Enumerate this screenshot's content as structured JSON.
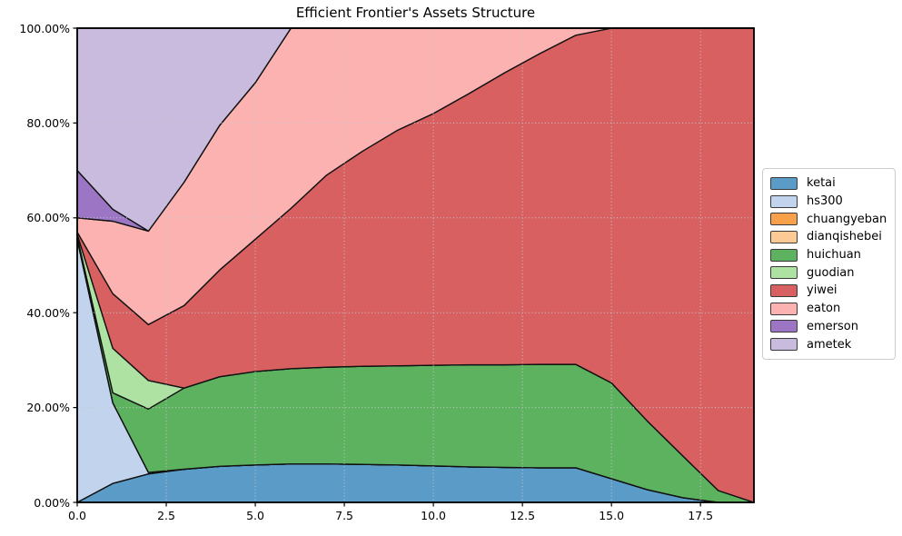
{
  "title": "Efficient Frontier's Assets Structure",
  "axes": {
    "y_tick_values": [
      0,
      20,
      40,
      60,
      80,
      100
    ],
    "y_tick_labels": [
      "0.00%",
      "20.00%",
      "40.00%",
      "60.00%",
      "80.00%",
      "100.00%"
    ],
    "x_tick_values": [
      0,
      2.5,
      5,
      7.5,
      10,
      12.5,
      15,
      17.5
    ],
    "x_tick_labels": [
      "0.0",
      "2.5",
      "5.0",
      "7.5",
      "10.0",
      "12.5",
      "15.0",
      "17.5"
    ],
    "grid_style": "dotted",
    "grid_color": "#c3c8cb",
    "frame_color": "#000000"
  },
  "chart_data": {
    "type": "area",
    "stacked": true,
    "title": "Efficient Frontier's Assets Structure",
    "xlabel": "",
    "ylabel": "",
    "xlim": [
      0,
      19
    ],
    "ylim": [
      0,
      100
    ],
    "y_unit": "percent",
    "grid": true,
    "legend_position": "center right outside",
    "edge_color": "#111111",
    "x": [
      0,
      1,
      2,
      3,
      4,
      5,
      6,
      7,
      8,
      9,
      10,
      11,
      12,
      13,
      14,
      15,
      16,
      17,
      18,
      19
    ],
    "series": [
      {
        "name": "ketai",
        "color": "#5b9bc8",
        "values": [
          0,
          4,
          6,
          7,
          7.6,
          7.9,
          8.1,
          8.1,
          8,
          7.9,
          7.7,
          7.5,
          7.4,
          7.3,
          7.3,
          5,
          2.7,
          1,
          0,
          0
        ]
      },
      {
        "name": "hs300",
        "color": "#c2d4ed",
        "values": [
          55.5,
          17,
          0.3,
          0,
          0,
          0,
          0,
          0,
          0,
          0,
          0,
          0,
          0,
          0,
          0,
          0,
          0,
          0,
          0,
          0
        ]
      },
      {
        "name": "chuangyeban",
        "color": "#f9a04a",
        "values": [
          0,
          0,
          0,
          0,
          0,
          0,
          0,
          0,
          0,
          0,
          0,
          0,
          0,
          0,
          0,
          0,
          0,
          0,
          0,
          0
        ]
      },
      {
        "name": "dianqishebei",
        "color": "#fdc995",
        "values": [
          0,
          0,
          0,
          0,
          0,
          0,
          0,
          0,
          0,
          0,
          0,
          0,
          0,
          0,
          0,
          0,
          0,
          0,
          0,
          0
        ]
      },
      {
        "name": "huichuan",
        "color": "#5db25f",
        "values": [
          0.5,
          2.1,
          13.4,
          17.1,
          18.9,
          19.7,
          20.1,
          20.4,
          20.7,
          20.9,
          21.2,
          21.5,
          21.6,
          21.8,
          21.8,
          20.2,
          14.5,
          8.8,
          2.5,
          0
        ]
      },
      {
        "name": "guodian",
        "color": "#aee2a2",
        "values": [
          0.5,
          9.4,
          6,
          0,
          0,
          0,
          0,
          0,
          0,
          0,
          0,
          0,
          0,
          0,
          0,
          0,
          0,
          0,
          0,
          0
        ]
      },
      {
        "name": "yiwei",
        "color": "#d96061",
        "values": [
          0.5,
          11.5,
          11.8,
          17.4,
          22.5,
          27.9,
          33.8,
          40.5,
          45.3,
          49.7,
          53.1,
          57.2,
          61.6,
          65.6,
          69.4,
          74.8,
          82.8,
          90.2,
          97.5,
          100
        ]
      },
      {
        "name": "eaton",
        "color": "#fcb2b1",
        "values": [
          3,
          15.3,
          19.7,
          26,
          30.5,
          33,
          38,
          31,
          26,
          21.5,
          18,
          13.8,
          9.4,
          5.3,
          1.5,
          0,
          0,
          0,
          0,
          0
        ]
      },
      {
        "name": "emerson",
        "color": "#9c76c5",
        "values": [
          10,
          2.5,
          0,
          0,
          0,
          0,
          0,
          0,
          0,
          0,
          0,
          0,
          0,
          0,
          0,
          0,
          0,
          0,
          0,
          0
        ]
      },
      {
        "name": "ametek",
        "color": "#c8bbde",
        "values": [
          30,
          38.2,
          42.8,
          32.5,
          20.5,
          11.5,
          0,
          0,
          0,
          0,
          0,
          0,
          0,
          0,
          0,
          0,
          0,
          0,
          0,
          0
        ]
      }
    ]
  }
}
